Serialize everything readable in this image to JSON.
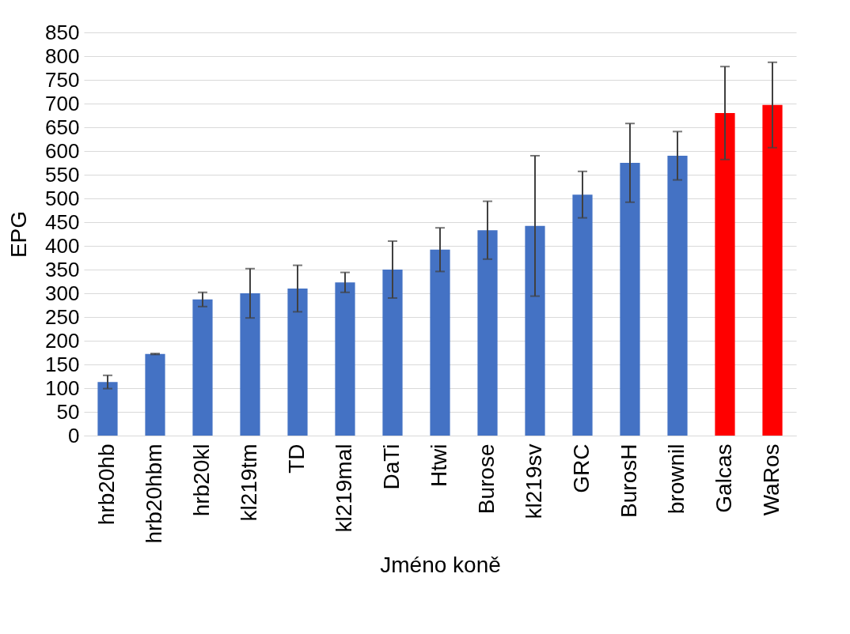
{
  "chart_data": {
    "type": "bar",
    "xlabel": "Jméno koně",
    "ylabel": "EPG",
    "categories": [
      "hrb20hb",
      "hrb20hbm",
      "hrb20kl",
      "kl219tm",
      "TD",
      "kl219mal",
      "DaTi",
      "Htwi",
      "Burose",
      "kl219sv",
      "GRC",
      "BurosH",
      "brownil",
      "Galcas",
      "WaRos"
    ],
    "values": [
      113,
      172,
      287,
      300,
      310,
      323,
      350,
      392,
      433,
      442,
      508,
      575,
      590,
      680,
      697
    ],
    "errors": [
      14,
      1,
      15,
      52,
      49,
      21,
      60,
      46,
      61,
      148,
      49,
      83,
      51,
      98,
      90
    ],
    "colors": [
      "#4472c4",
      "#4472c4",
      "#4472c4",
      "#4472c4",
      "#4472c4",
      "#4472c4",
      "#4472c4",
      "#4472c4",
      "#4472c4",
      "#4472c4",
      "#4472c4",
      "#4472c4",
      "#4472c4",
      "#ff0000",
      "#ff0000"
    ],
    "ylim": [
      0,
      850
    ],
    "yticks": [
      0,
      50,
      100,
      150,
      200,
      250,
      300,
      350,
      400,
      450,
      500,
      550,
      600,
      650,
      700,
      750,
      800,
      850
    ],
    "grid": "y"
  }
}
